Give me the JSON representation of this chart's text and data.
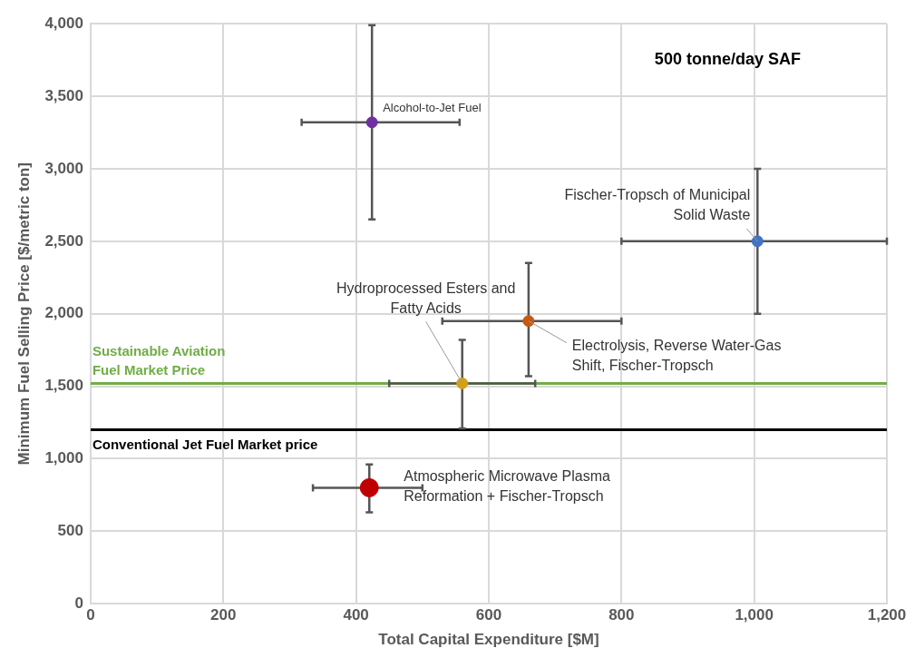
{
  "chart_data": {
    "type": "scatter",
    "xlabel": "Total Capital Expenditure [$M]",
    "ylabel": "Minimum Fuel Selling Price [$/metric ton]",
    "annotations": [
      "500 tonne/day SAF"
    ],
    "xlim": [
      0,
      1200
    ],
    "xticks": [
      0,
      200,
      400,
      600,
      800,
      {
        "value": 1000,
        "label": "1,000"
      },
      {
        "value": 1200,
        "label": "1,200"
      }
    ],
    "ylim": [
      0,
      4000
    ],
    "yticks": [
      0,
      500,
      {
        "value": 1000,
        "label": "1,000"
      },
      {
        "value": 1500,
        "label": "1,500"
      },
      {
        "value": 2000,
        "label": "2,000"
      },
      {
        "value": 2500,
        "label": "2,500"
      },
      {
        "value": 3000,
        "label": "3,000"
      },
      {
        "value": 3500,
        "label": "3,500"
      },
      {
        "value": 4000,
        "label": "4,000"
      }
    ],
    "grid": true,
    "marker": "circle",
    "legend": false,
    "ref_lines": [
      {
        "axis": "y",
        "value": 1520,
        "label": "Sustainable Aviation Fuel Market Price",
        "color": "#70ad47"
      },
      {
        "axis": "y",
        "value": 1200,
        "label": "Conventional Jet Fuel Market price",
        "color": "#000000"
      }
    ],
    "series": [
      {
        "name": "Alcohol-to-Jet Fuel",
        "color": "#7030a0",
        "x": [
          424
        ],
        "values": [
          3320
        ],
        "errors": [
          [
            2650,
            3990
          ]
        ],
        "xerrors": [
          [
            318,
            556
          ]
        ]
      },
      {
        "name": "Fischer-Tropsch of Municipal Solid Waste",
        "color": "#4472c4",
        "x": [
          1005
        ],
        "values": [
          2500
        ],
        "errors": [
          [
            2000,
            3000
          ]
        ],
        "xerrors": [
          [
            800,
            1200
          ]
        ]
      },
      {
        "name": "Hydroprocessed Esters and Fatty Acids",
        "color": "#d4a017",
        "x": [
          560
        ],
        "values": [
          1520
        ],
        "errors": [
          [
            1210,
            1820
          ]
        ],
        "xerrors": [
          [
            450,
            670
          ]
        ]
      },
      {
        "name": "Electrolysis, Reverse Water-Gas Shift, Fischer-Tropsch",
        "color": "#c55a11",
        "x": [
          660
        ],
        "values": [
          1950
        ],
        "errors": [
          [
            1570,
            2350
          ]
        ],
        "xerrors": [
          [
            530,
            800
          ]
        ]
      },
      {
        "name": "Atmospheric Microwave Plasma Reformation + Fischer-Tropsch",
        "color": "#c00000",
        "x": [
          420
        ],
        "values": [
          800
        ],
        "errors": [
          [
            630,
            960
          ]
        ],
        "xerrors": [
          [
            335,
            500
          ]
        ]
      }
    ]
  }
}
